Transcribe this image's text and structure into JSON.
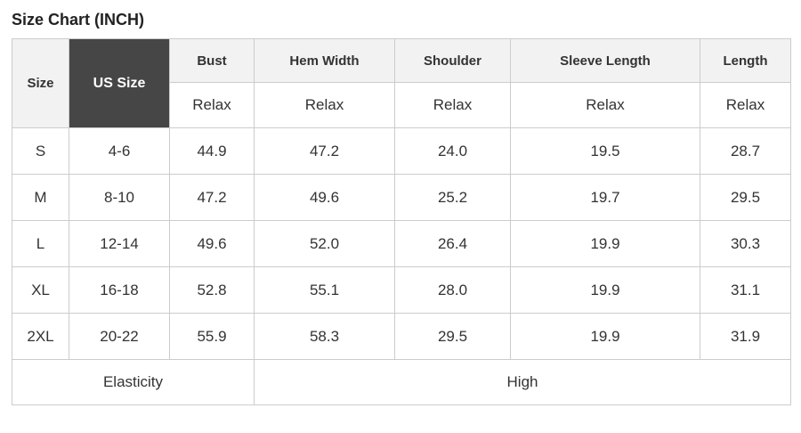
{
  "title": "Size Chart (INCH)",
  "colors": {
    "title_text": "#222222",
    "header_bg": "#f2f2f2",
    "dark_cell_bg": "#464646",
    "dark_cell_text": "#ffffff",
    "border": "#cccccc",
    "body_text": "#333333"
  },
  "chart_data": {
    "type": "table",
    "title": "Size Chart (INCH)",
    "unit": "INCH",
    "columns": [
      "Size",
      "US Size",
      "Bust",
      "Hem Width",
      "Shoulder",
      "Sleeve Length",
      "Length"
    ],
    "fit_row": [
      "Relax",
      "Relax",
      "Relax",
      "Relax",
      "Relax"
    ],
    "rows": [
      [
        "S",
        "4-6",
        "44.9",
        "47.2",
        "24.0",
        "19.5",
        "28.7"
      ],
      [
        "M",
        "8-10",
        "47.2",
        "49.6",
        "25.2",
        "19.7",
        "29.5"
      ],
      [
        "L",
        "12-14",
        "49.6",
        "52.0",
        "26.4",
        "19.9",
        "30.3"
      ],
      [
        "XL",
        "16-18",
        "52.8",
        "55.1",
        "28.0",
        "19.9",
        "31.1"
      ],
      [
        "2XL",
        "20-22",
        "55.9",
        "58.3",
        "29.5",
        "19.9",
        "31.9"
      ]
    ],
    "footer": {
      "label": "Elasticity",
      "value": "High"
    }
  }
}
